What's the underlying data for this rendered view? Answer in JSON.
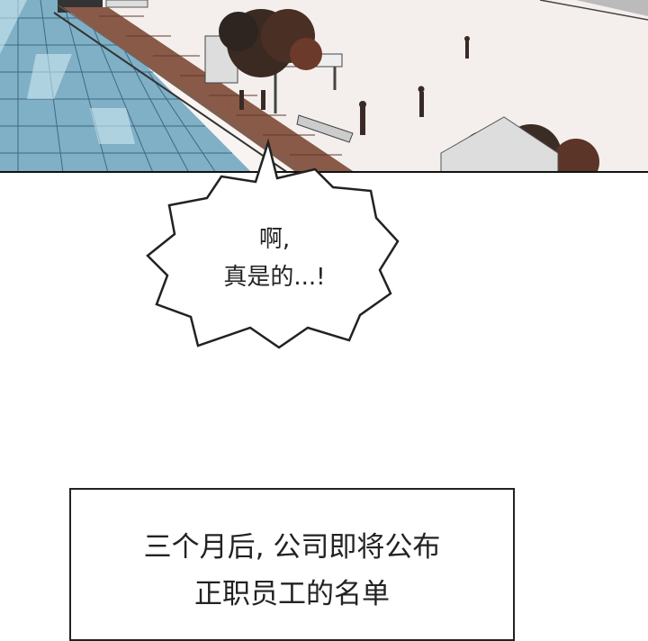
{
  "scene": {
    "description_icon": "rooftop-scene-icon"
  },
  "speech_bubble": {
    "line1": "啊,",
    "line2": "真是的...!"
  },
  "caption": {
    "line1": "三个月后, 公司即将公布",
    "line2": "正职员工的名单"
  }
}
